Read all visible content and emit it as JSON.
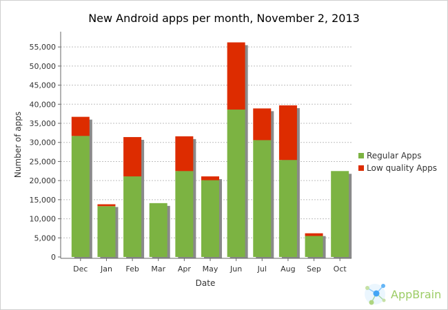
{
  "chart_data": {
    "type": "bar",
    "stacked": true,
    "title": "New Android apps per month, November 2, 2013",
    "xlabel": "Date",
    "ylabel": "Number of apps",
    "categories": [
      "Dec",
      "Jan",
      "Feb",
      "Mar",
      "Apr",
      "May",
      "Jun",
      "Jul",
      "Aug",
      "Sep",
      "Oct"
    ],
    "series": [
      {
        "name": "Regular Apps",
        "color": "#7cb342",
        "values": [
          31700,
          13300,
          21100,
          14100,
          22500,
          20100,
          38600,
          30600,
          25400,
          5500,
          22500
        ]
      },
      {
        "name": "Low quality Apps",
        "color": "#dd2c00",
        "values": [
          5000,
          500,
          10300,
          0,
          9100,
          1000,
          17600,
          8300,
          14300,
          700,
          0
        ]
      }
    ],
    "ylim": [
      0,
      59000
    ],
    "yticks": [
      0,
      5000,
      10000,
      15000,
      20000,
      25000,
      30000,
      35000,
      40000,
      45000,
      50000,
      55000
    ],
    "ytick_labels": [
      "0",
      "5,000",
      "10,000",
      "15,000",
      "20,000",
      "25,000",
      "30,000",
      "35,000",
      "40,000",
      "45,000",
      "50,000",
      "55,000"
    ],
    "grid": true,
    "legend_position": "right"
  },
  "branding": {
    "name": "AppBrain",
    "logo_icon": "network-nodes-icon",
    "color": "#9ccc65"
  }
}
